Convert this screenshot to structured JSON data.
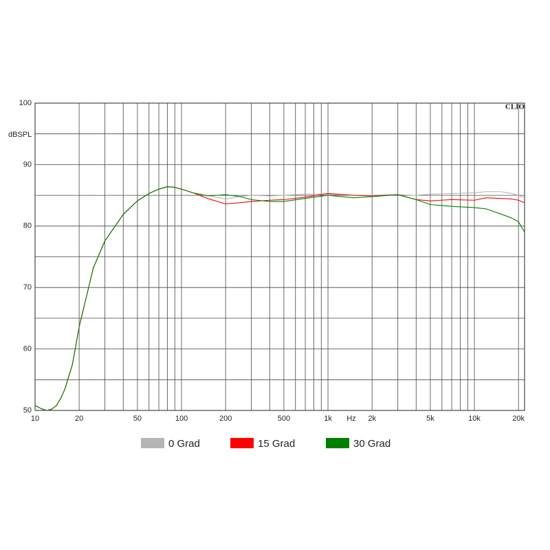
{
  "chart_data": {
    "type": "line",
    "ylabel": "dBSPL",
    "xlabel": "Hz",
    "annotation": "CLIO",
    "xscale": "log",
    "xlim": [
      10,
      22000
    ],
    "ylim": [
      50,
      100
    ],
    "xticks": [
      10,
      20,
      50,
      100,
      200,
      500,
      {
        "value": 1000,
        "label": "1k"
      },
      {
        "value": 2000,
        "label": "2k"
      },
      {
        "value": 5000,
        "label": "5k"
      },
      {
        "value": 10000,
        "label": "10k"
      },
      {
        "value": 20000,
        "label": "20k"
      }
    ],
    "minor_xticks": [
      30,
      40,
      60,
      70,
      80,
      90,
      300,
      400,
      600,
      700,
      800,
      900,
      3000,
      4000,
      6000,
      7000,
      8000,
      9000
    ],
    "yticks": [
      50,
      60,
      70,
      80,
      90,
      100
    ],
    "minor_yticks": [
      55,
      65,
      75,
      85,
      95
    ],
    "grid": true,
    "x": [
      10,
      11,
      12,
      13,
      14,
      15,
      16,
      18,
      20,
      25,
      30,
      40,
      50,
      60,
      70,
      80,
      90,
      100,
      120,
      150,
      200,
      250,
      300,
      400,
      500,
      700,
      1000,
      1500,
      2000,
      3000,
      4000,
      5000,
      7000,
      10000,
      12000,
      15000,
      18000,
      20000,
      22000
    ],
    "series": [
      {
        "name": "0 Grad",
        "color": "#b4b4b4",
        "values": [
          50.8,
          50.3,
          50.0,
          50.2,
          50.8,
          52,
          53.5,
          57.5,
          63.6,
          73.2,
          77.6,
          81.9,
          84.1,
          85.3,
          86.0,
          86.4,
          86.3,
          86.0,
          85.4,
          85.0,
          84.4,
          84.8,
          85.0,
          84.9,
          85.0,
          85.2,
          85.2,
          85.0,
          85.0,
          85.1,
          85.0,
          85.2,
          85.3,
          85.4,
          85.6,
          85.6,
          85.3,
          85.0,
          84.6
        ]
      },
      {
        "name": "15 Grad",
        "color": "#ff0000",
        "values": [
          50.8,
          50.3,
          50.0,
          50.2,
          50.8,
          52,
          53.5,
          57.5,
          63.6,
          73.2,
          77.6,
          81.9,
          84.1,
          85.3,
          86.0,
          86.4,
          86.3,
          86.0,
          85.4,
          84.5,
          83.6,
          83.8,
          84.0,
          84.2,
          84.3,
          84.7,
          85.3,
          85.0,
          84.9,
          85.1,
          84.3,
          84.1,
          84.3,
          84.2,
          84.6,
          84.5,
          84.4,
          84.2,
          83.8
        ]
      },
      {
        "name": "30 Grad",
        "color": "#008000",
        "values": [
          50.8,
          50.3,
          50.0,
          50.2,
          50.8,
          52,
          53.5,
          57.5,
          63.6,
          73.2,
          77.6,
          81.9,
          84.1,
          85.3,
          86.0,
          86.4,
          86.3,
          86.0,
          85.4,
          84.9,
          85.1,
          84.8,
          84.3,
          84.0,
          84.0,
          84.5,
          85.0,
          84.6,
          84.8,
          85.1,
          84.3,
          83.5,
          83.2,
          83.0,
          82.8,
          82.0,
          81.3,
          80.7,
          79.0
        ]
      }
    ]
  }
}
